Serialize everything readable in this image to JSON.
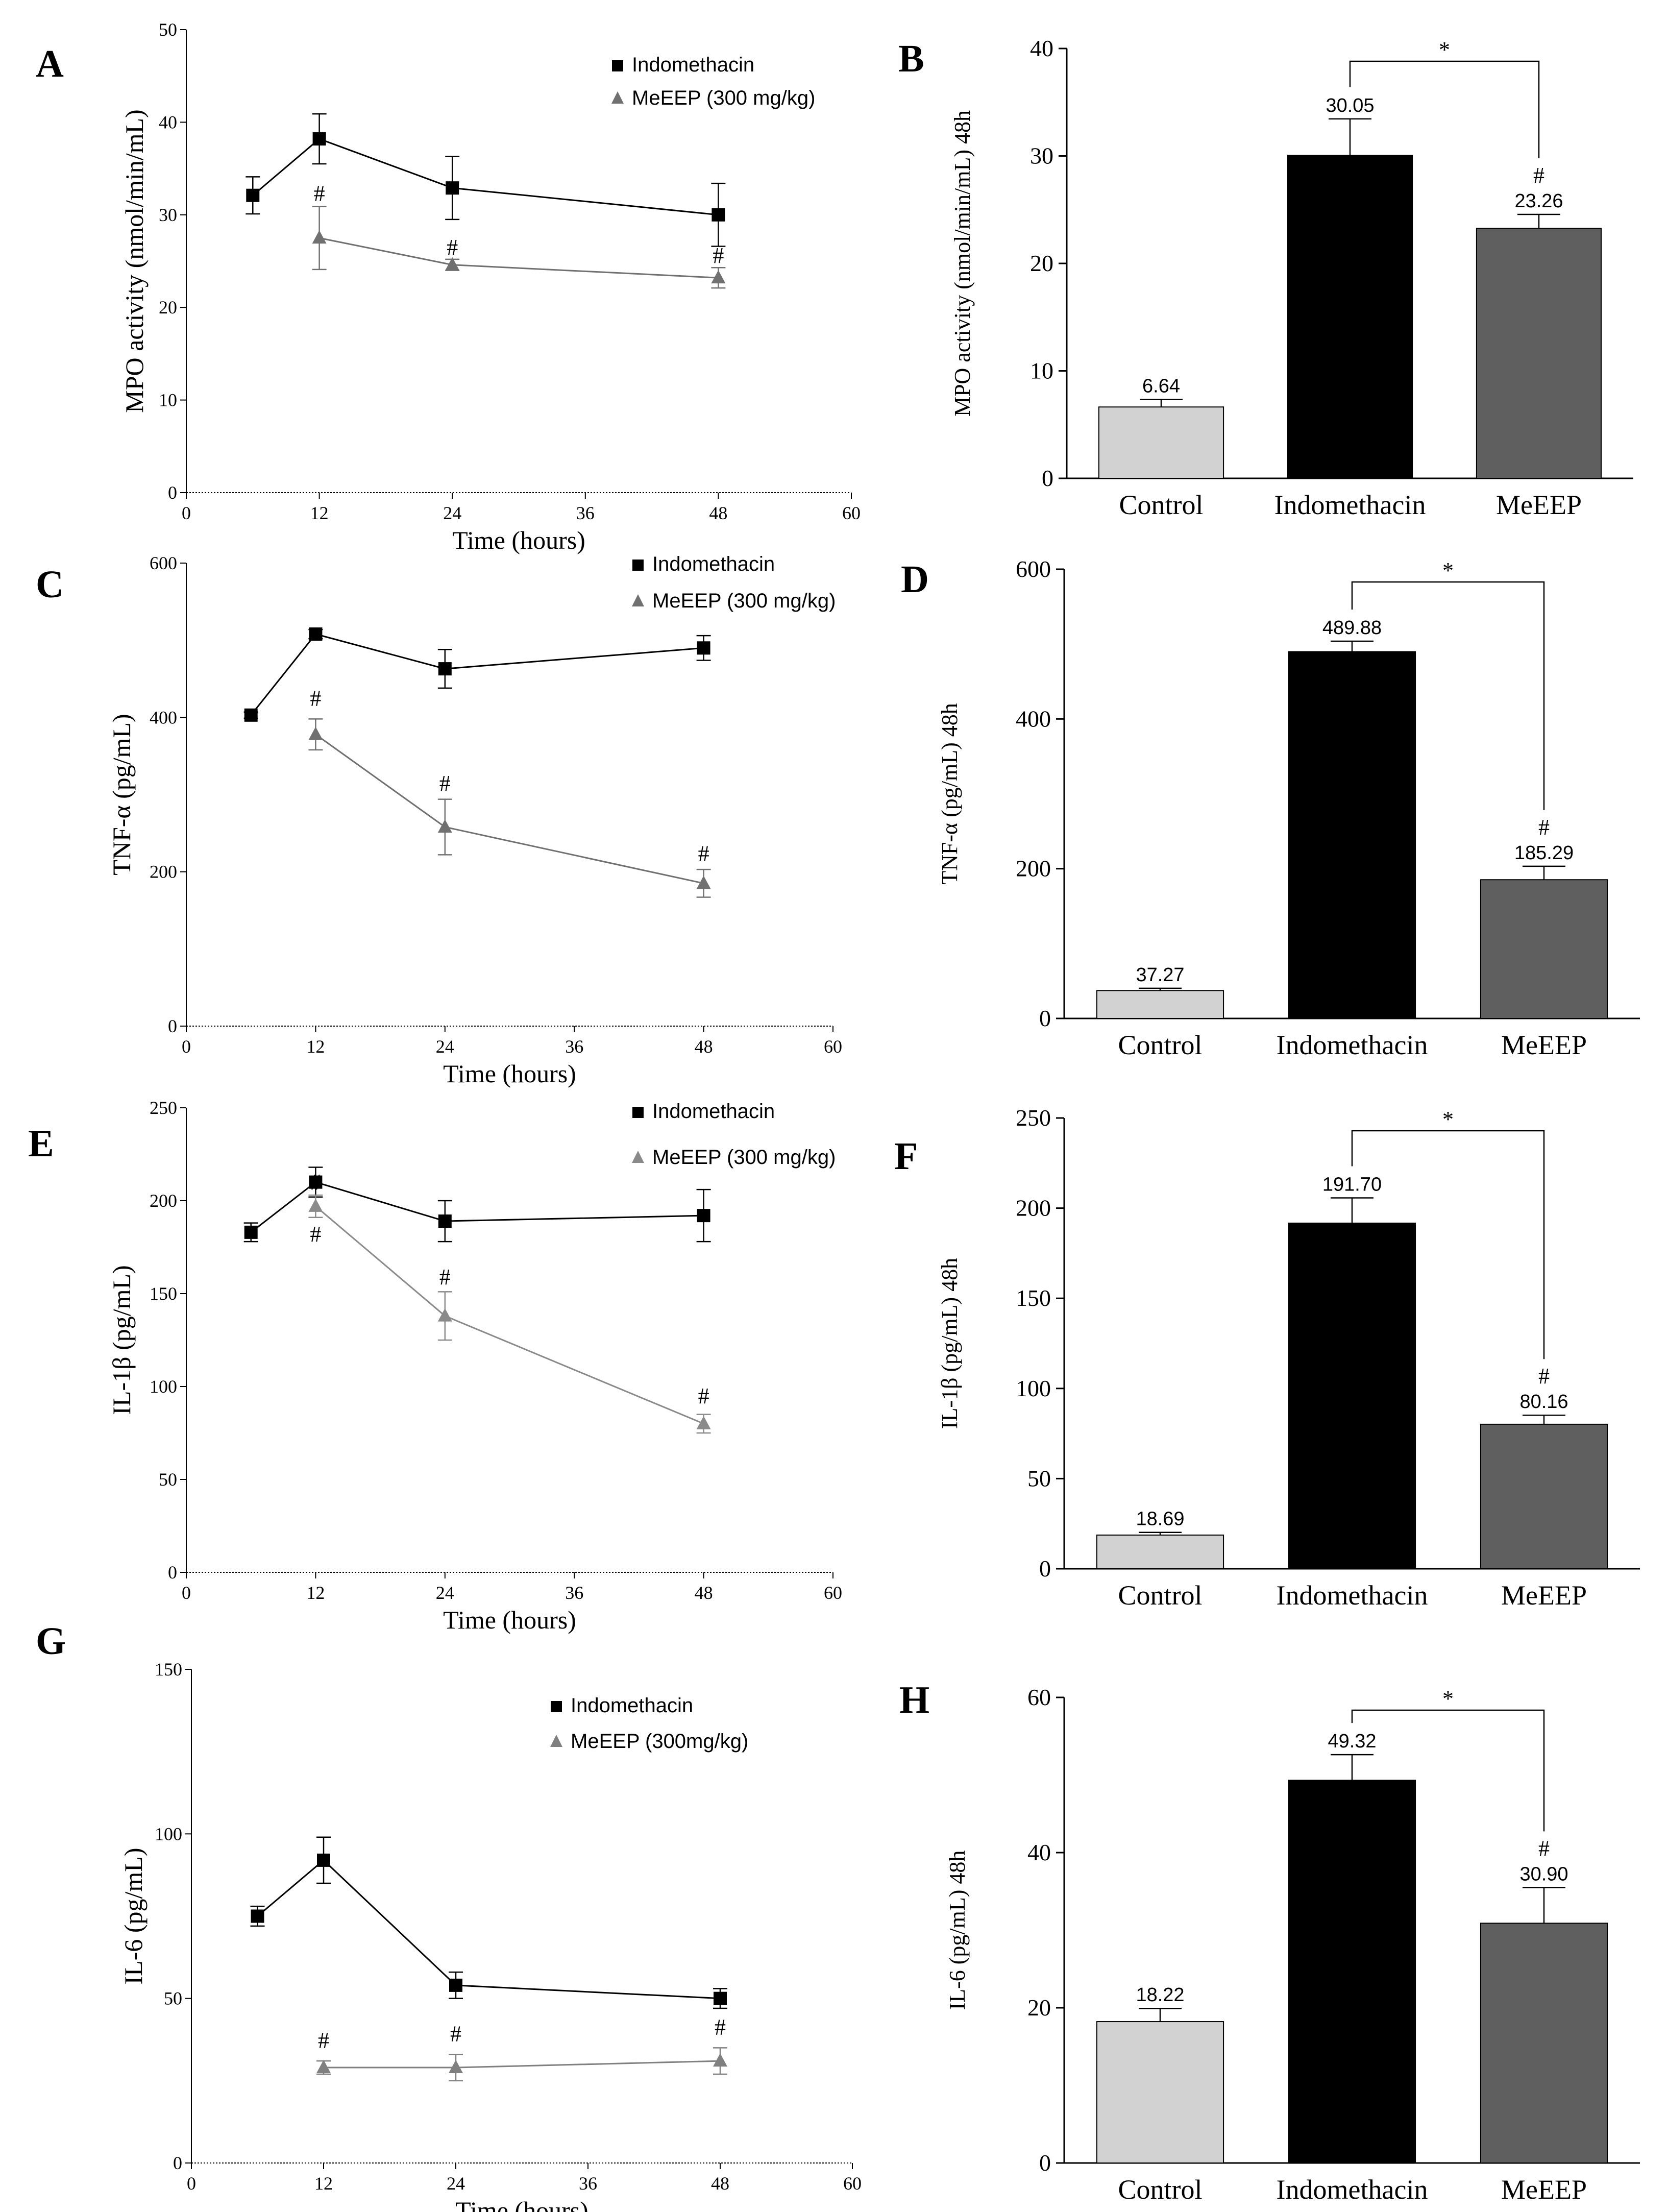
{
  "chart_data": [
    {
      "id": "A",
      "type": "line",
      "panel_label": "A",
      "xlabel": "Time (hours)",
      "ylabel": "MPO activity (nmol/min/mL)",
      "xlim": [
        0,
        60
      ],
      "ylim": [
        0,
        50
      ],
      "xticks": [
        "0",
        "12",
        "24",
        "36",
        "48",
        "60"
      ],
      "yticks": [
        "0",
        "10",
        "20",
        "30",
        "40",
        "50"
      ],
      "series": [
        {
          "name": "Indomethacin",
          "marker": "square",
          "color": "#000000",
          "x": [
            6,
            12,
            24,
            48
          ],
          "y": [
            32.1,
            38.2,
            32.9,
            30.0
          ],
          "err": [
            2.0,
            2.7,
            3.4,
            3.4
          ]
        },
        {
          "name": "MeEEP (300 mg/kg)",
          "marker": "triangle",
          "color": "#707070",
          "x": [
            12,
            24,
            48
          ],
          "y": [
            27.5,
            24.6,
            23.2
          ],
          "err": [
            3.4,
            0.6,
            1.1
          ]
        }
      ],
      "annotations": [
        {
          "text": "#",
          "x": 12,
          "y": 31.5
        },
        {
          "text": "#",
          "x": 24,
          "y": 25.7
        },
        {
          "text": "#",
          "x": 48,
          "y": 24.8
        }
      ]
    },
    {
      "id": "B",
      "type": "bar",
      "panel_label": "B",
      "ylabel": "MPO activity (nmol/min/mL) 48h",
      "ylim": [
        0,
        40
      ],
      "yticks": [
        "0",
        "10",
        "20",
        "30",
        "40"
      ],
      "categories": [
        "Control",
        "Indomethacin",
        "MeEEP"
      ],
      "values": [
        6.64,
        30.05,
        23.26
      ],
      "err": [
        0.7,
        3.4,
        1.3
      ],
      "value_labels": [
        "6.64",
        "30.05",
        "23.26"
      ],
      "colors": [
        "#d2d2d2",
        "#000000",
        "#5f5f5f"
      ],
      "hash_on": "MeEEP",
      "significance": "*",
      "bracket_from": "Indomethacin",
      "bracket_to": "MeEEP"
    },
    {
      "id": "C",
      "type": "line",
      "panel_label": "C",
      "xlabel": "Time (hours)",
      "ylabel": "TNF-α (pg/mL)",
      "xlim": [
        0,
        60
      ],
      "ylim": [
        0,
        600
      ],
      "xticks": [
        "0",
        "12",
        "24",
        "36",
        "48",
        "60"
      ],
      "yticks": [
        "0",
        "200",
        "400",
        "600"
      ],
      "series": [
        {
          "name": "Indomethacin",
          "marker": "square",
          "color": "#000000",
          "x": [
            6,
            12,
            24,
            48
          ],
          "y": [
            403,
            508,
            463,
            490
          ],
          "err": [
            4,
            6,
            25,
            16
          ]
        },
        {
          "name": "MeEEP (300 mg/kg)",
          "marker": "triangle",
          "color": "#707070",
          "x": [
            12,
            24,
            48
          ],
          "y": [
            378,
            258,
            185
          ],
          "err": [
            20,
            36,
            18
          ]
        }
      ],
      "annotations": [
        {
          "text": "#",
          "x": 12,
          "y": 415
        },
        {
          "text": "#",
          "x": 24,
          "y": 305
        },
        {
          "text": "#",
          "x": 48,
          "y": 214
        }
      ]
    },
    {
      "id": "D",
      "type": "bar",
      "panel_label": "D",
      "ylabel": "TNF-α (pg/mL) 48h",
      "ylim": [
        0,
        600
      ],
      "yticks": [
        "0",
        "200",
        "400",
        "600"
      ],
      "categories": [
        "Control",
        "Indomethacin",
        "MeEEP"
      ],
      "values": [
        37.27,
        489.88,
        185.29
      ],
      "err": [
        3,
        14,
        18
      ],
      "value_labels": [
        "37.27",
        "489.88",
        "185.29"
      ],
      "colors": [
        "#d2d2d2",
        "#000000",
        "#5f5f5f"
      ],
      "hash_on": "MeEEP",
      "significance": "*",
      "bracket_from": "Indomethacin",
      "bracket_to": "MeEEP"
    },
    {
      "id": "E",
      "type": "line",
      "panel_label": "E",
      "xlabel": "Time (hours)",
      "ylabel": "IL-1β (pg/mL)",
      "xlim": [
        0,
        60
      ],
      "ylim": [
        0,
        250
      ],
      "xticks": [
        "0",
        "12",
        "24",
        "36",
        "48",
        "60"
      ],
      "yticks": [
        "0",
        "50",
        "100",
        "150",
        "200",
        "250"
      ],
      "series": [
        {
          "name": "Indomethacin",
          "marker": "square",
          "color": "#000000",
          "x": [
            6,
            12,
            24,
            48
          ],
          "y": [
            183,
            210,
            189,
            192
          ],
          "err": [
            5,
            8,
            11,
            14
          ]
        },
        {
          "name": "MeEEP (300 mg/kg)",
          "marker": "triangle",
          "color": "#8a8a8a",
          "x": [
            12,
            24,
            48
          ],
          "y": [
            197,
            138,
            80
          ],
          "err": [
            6,
            13,
            5
          ]
        }
      ],
      "annotations": [
        {
          "text": "#",
          "x": 12,
          "y": 206
        },
        {
          "text": "#",
          "x": 12,
          "y": 178
        },
        {
          "text": "#",
          "x": 24,
          "y": 155
        },
        {
          "text": "#",
          "x": 48,
          "y": 91
        }
      ]
    },
    {
      "id": "F",
      "type": "bar",
      "panel_label": "F",
      "ylabel": "IL-1β (pg/mL) 48h",
      "ylim": [
        0,
        250
      ],
      "yticks": [
        "0",
        "50",
        "100",
        "150",
        "200",
        "250"
      ],
      "categories": [
        "Control",
        "Indomethacin",
        "MeEEP"
      ],
      "values": [
        18.69,
        191.7,
        80.16
      ],
      "err": [
        1.5,
        14,
        5
      ],
      "value_labels": [
        "18.69",
        "191.70",
        "80.16"
      ],
      "colors": [
        "#d2d2d2",
        "#000000",
        "#5f5f5f"
      ],
      "hash_on": "MeEEP",
      "significance": "*",
      "bracket_from": "Indomethacin",
      "bracket_to": "MeEEP"
    },
    {
      "id": "G",
      "type": "line",
      "panel_label": "G",
      "xlabel": "Time (hours)",
      "ylabel": "IL-6 (pg/mL)",
      "xlim": [
        0,
        60
      ],
      "ylim": [
        0,
        150
      ],
      "xticks": [
        "0",
        "12",
        "24",
        "36",
        "48",
        "60"
      ],
      "yticks": [
        "0",
        "50",
        "100",
        "150"
      ],
      "series": [
        {
          "name": "Indomethacin",
          "marker": "square",
          "color": "#000000",
          "x": [
            6,
            12,
            24,
            48
          ],
          "y": [
            75,
            92,
            54,
            50
          ],
          "err": [
            3,
            7,
            4,
            3
          ]
        },
        {
          "name": "MeEEP (300mg/kg)",
          "marker": "triangle",
          "color": "#808080",
          "x": [
            12,
            24,
            48
          ],
          "y": [
            29,
            29,
            31
          ],
          "err": [
            2,
            4,
            4
          ]
        }
      ],
      "annotations": [
        {
          "text": "#",
          "x": 12,
          "y": 35
        },
        {
          "text": "#",
          "x": 24,
          "y": 37
        },
        {
          "text": "#",
          "x": 48,
          "y": 39
        }
      ]
    },
    {
      "id": "H",
      "type": "bar",
      "panel_label": "H",
      "ylabel": "IL-6 (pg/mL) 48h",
      "ylim": [
        0,
        60
      ],
      "yticks": [
        "0",
        "20",
        "40",
        "60"
      ],
      "categories": [
        "Control",
        "Indomethacin",
        "MeEEP"
      ],
      "values": [
        18.22,
        49.32,
        30.9
      ],
      "err": [
        1.7,
        3.3,
        4.6
      ],
      "value_labels": [
        "18.22",
        "49.32",
        "30.90"
      ],
      "colors": [
        "#d2d2d2",
        "#000000",
        "#5f5f5f"
      ],
      "hash_on": "MeEEP",
      "significance": "*",
      "bracket_from": "Indomethacin",
      "bracket_to": "MeEEP"
    }
  ]
}
